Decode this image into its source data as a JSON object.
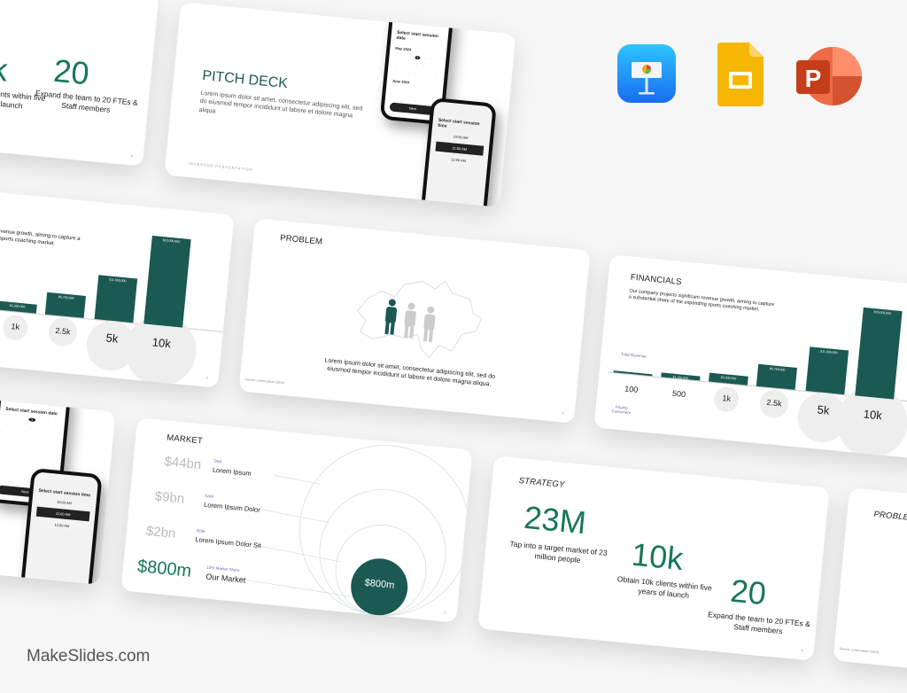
{
  "brand": "MakeSlides.com",
  "apps": [
    {
      "icon": "keynote-icon",
      "color": "#1e8cf5"
    },
    {
      "icon": "google-slides-icon",
      "color": "#f6b704"
    },
    {
      "icon": "powerpoint-icon",
      "color": "#d35230",
      "letter": "P"
    }
  ],
  "pitch": {
    "title": "PITCH DECK",
    "body": "Lorem ipsum dolor sit amet, consectetur adipiscing elit, sed do eiusmod tempor incididunt ut labore et dolore magna aliqua",
    "footer": "INVESTOR PRESENTATION"
  },
  "phone": {
    "date_title": "Select start session date",
    "month1": "May 2024",
    "month2": "June 2024",
    "selected_day": "1",
    "time_title": "Select start session time",
    "slots": [
      "10:00 AM",
      "11:00 AM",
      "12:00 AM"
    ],
    "button": "Next"
  },
  "problem": {
    "title": "PROBLEM",
    "body": "Lorem ipsum dolor sit amet, consectetur adipiscing elit, sed do eiusmod tempor incididunt ut labore et dolore magna aliqua.",
    "source": "Source: Lorem Ipsum (2024)",
    "page": "2"
  },
  "financials": {
    "title": "FINANCIALS",
    "body": "Our company projects significant revenue growth, aiming to capture a substantial share of the expanding sports coaching market.",
    "revenue_label": "Total Revenue",
    "customers_label": "Paying Customers",
    "page": "3"
  },
  "chart_data": {
    "type": "bar",
    "categories": [
      "100",
      "500",
      "1k",
      "2.5k",
      "5k",
      "10k"
    ],
    "values": [
      230000,
      1150000,
      2300000,
      5750000,
      11500000,
      23000000
    ],
    "value_labels": [
      "$230,000",
      "$1,150,000",
      "$2,300,000",
      "$5,750,000",
      "$11,500,000",
      "$23,000,000"
    ],
    "ylabel": "Total Revenue",
    "xlabel": "Paying Customers",
    "color": "#1b5a52"
  },
  "market": {
    "title": "MARKET",
    "rows": [
      {
        "value": "$44bn",
        "key": "TAM",
        "label": "Lorem Ipsum"
      },
      {
        "value": "$9bn",
        "key": "SAM",
        "label": "Lorem Ipsum Dolor"
      },
      {
        "value": "$2bn",
        "key": "SOM",
        "label": "Lorem Ipsum Dolor Sit"
      },
      {
        "value": "$800m",
        "key": "10% Market Share",
        "label": "Our Market"
      }
    ],
    "bubble": "$800m",
    "page": "5"
  },
  "strategy": {
    "title": "STRATEGY",
    "items": [
      {
        "value": "23M",
        "text": "Tap into a target market of 23 million people"
      },
      {
        "value": "10k",
        "text": "Obtain 10k clients within five years of launch"
      },
      {
        "value": "20",
        "text": "Expand the team to 20 FTEs & Staff members"
      }
    ],
    "page": "4"
  },
  "colors": {
    "accent": "#16775a",
    "dark_green": "#1b5a52"
  }
}
